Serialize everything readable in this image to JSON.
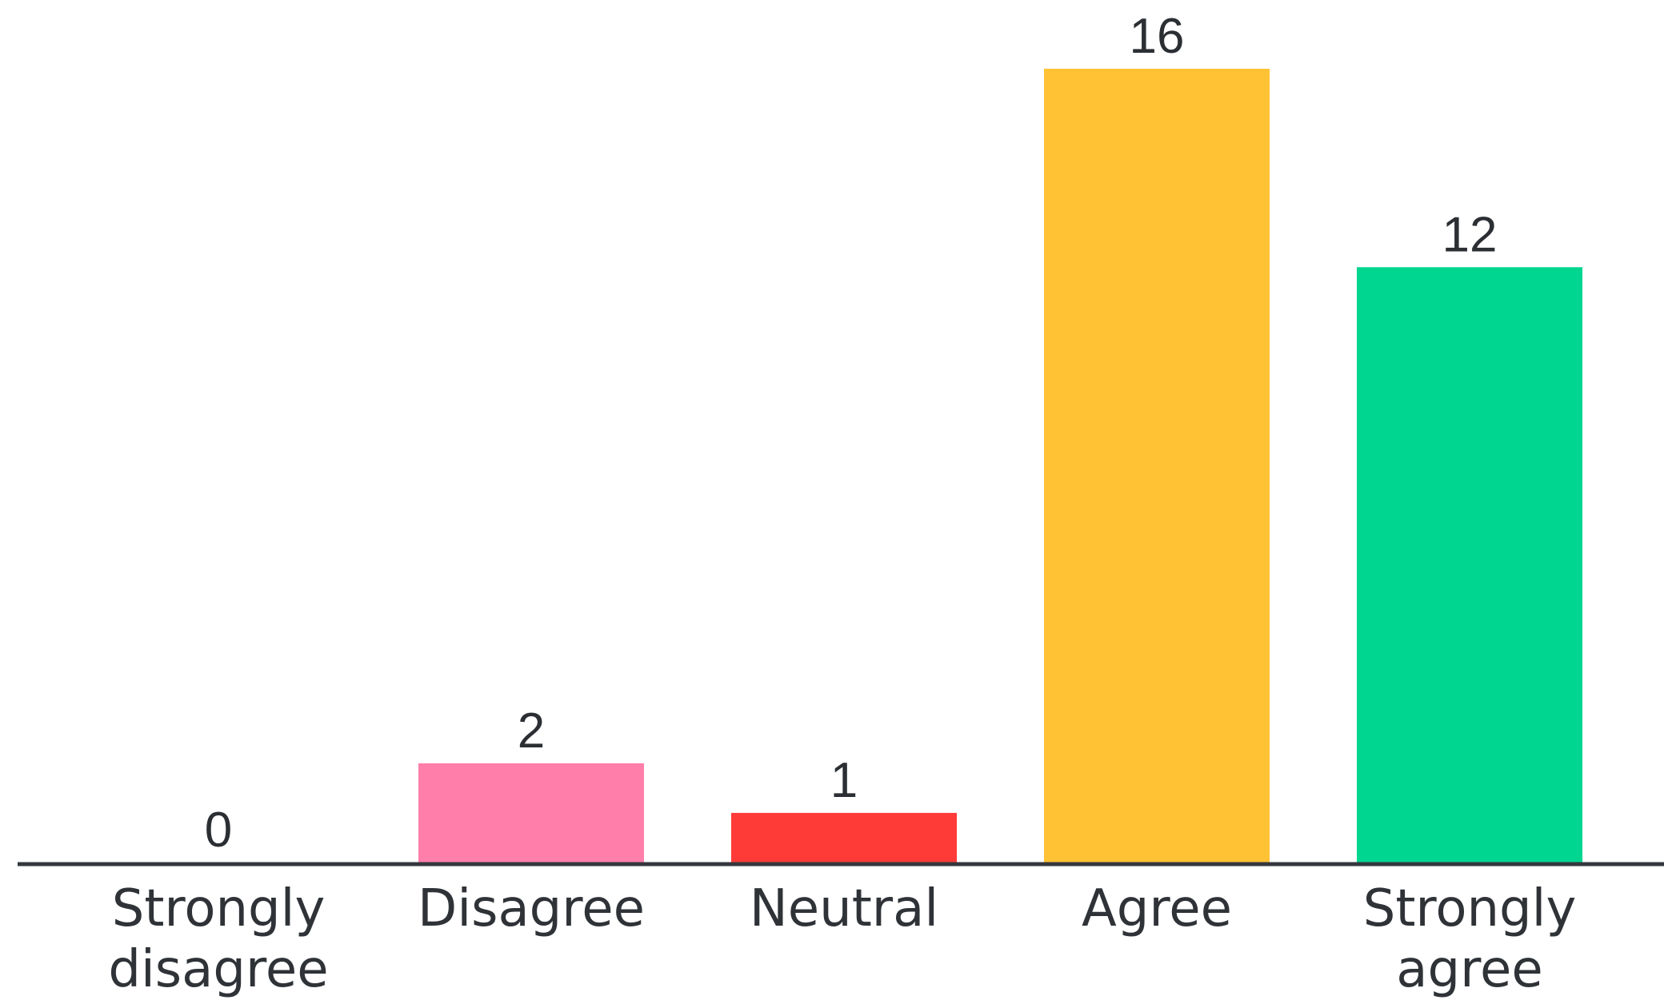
{
  "chart_data": {
    "type": "bar",
    "categories": [
      "Strongly disagree",
      "Disagree",
      "Neutral",
      "Agree",
      "Strongly agree"
    ],
    "category_label_lines": [
      [
        "Strongly",
        "disagree"
      ],
      [
        "Disagree"
      ],
      [
        "Neutral"
      ],
      [
        "Agree"
      ],
      [
        "Strongly",
        "agree"
      ]
    ],
    "values": [
      0,
      2,
      1,
      16,
      12
    ],
    "value_labels": [
      "0",
      "2",
      "1",
      "16",
      "12"
    ],
    "colors": [
      "#ff7eaa",
      "#ff7eaa",
      "#ff3b38",
      "#ffc234",
      "#00d68f"
    ],
    "axis_color": "#34383d",
    "title": "",
    "xlabel": "",
    "ylabel": "",
    "ylim": [
      0,
      16
    ],
    "grid": false,
    "legend": "none"
  }
}
